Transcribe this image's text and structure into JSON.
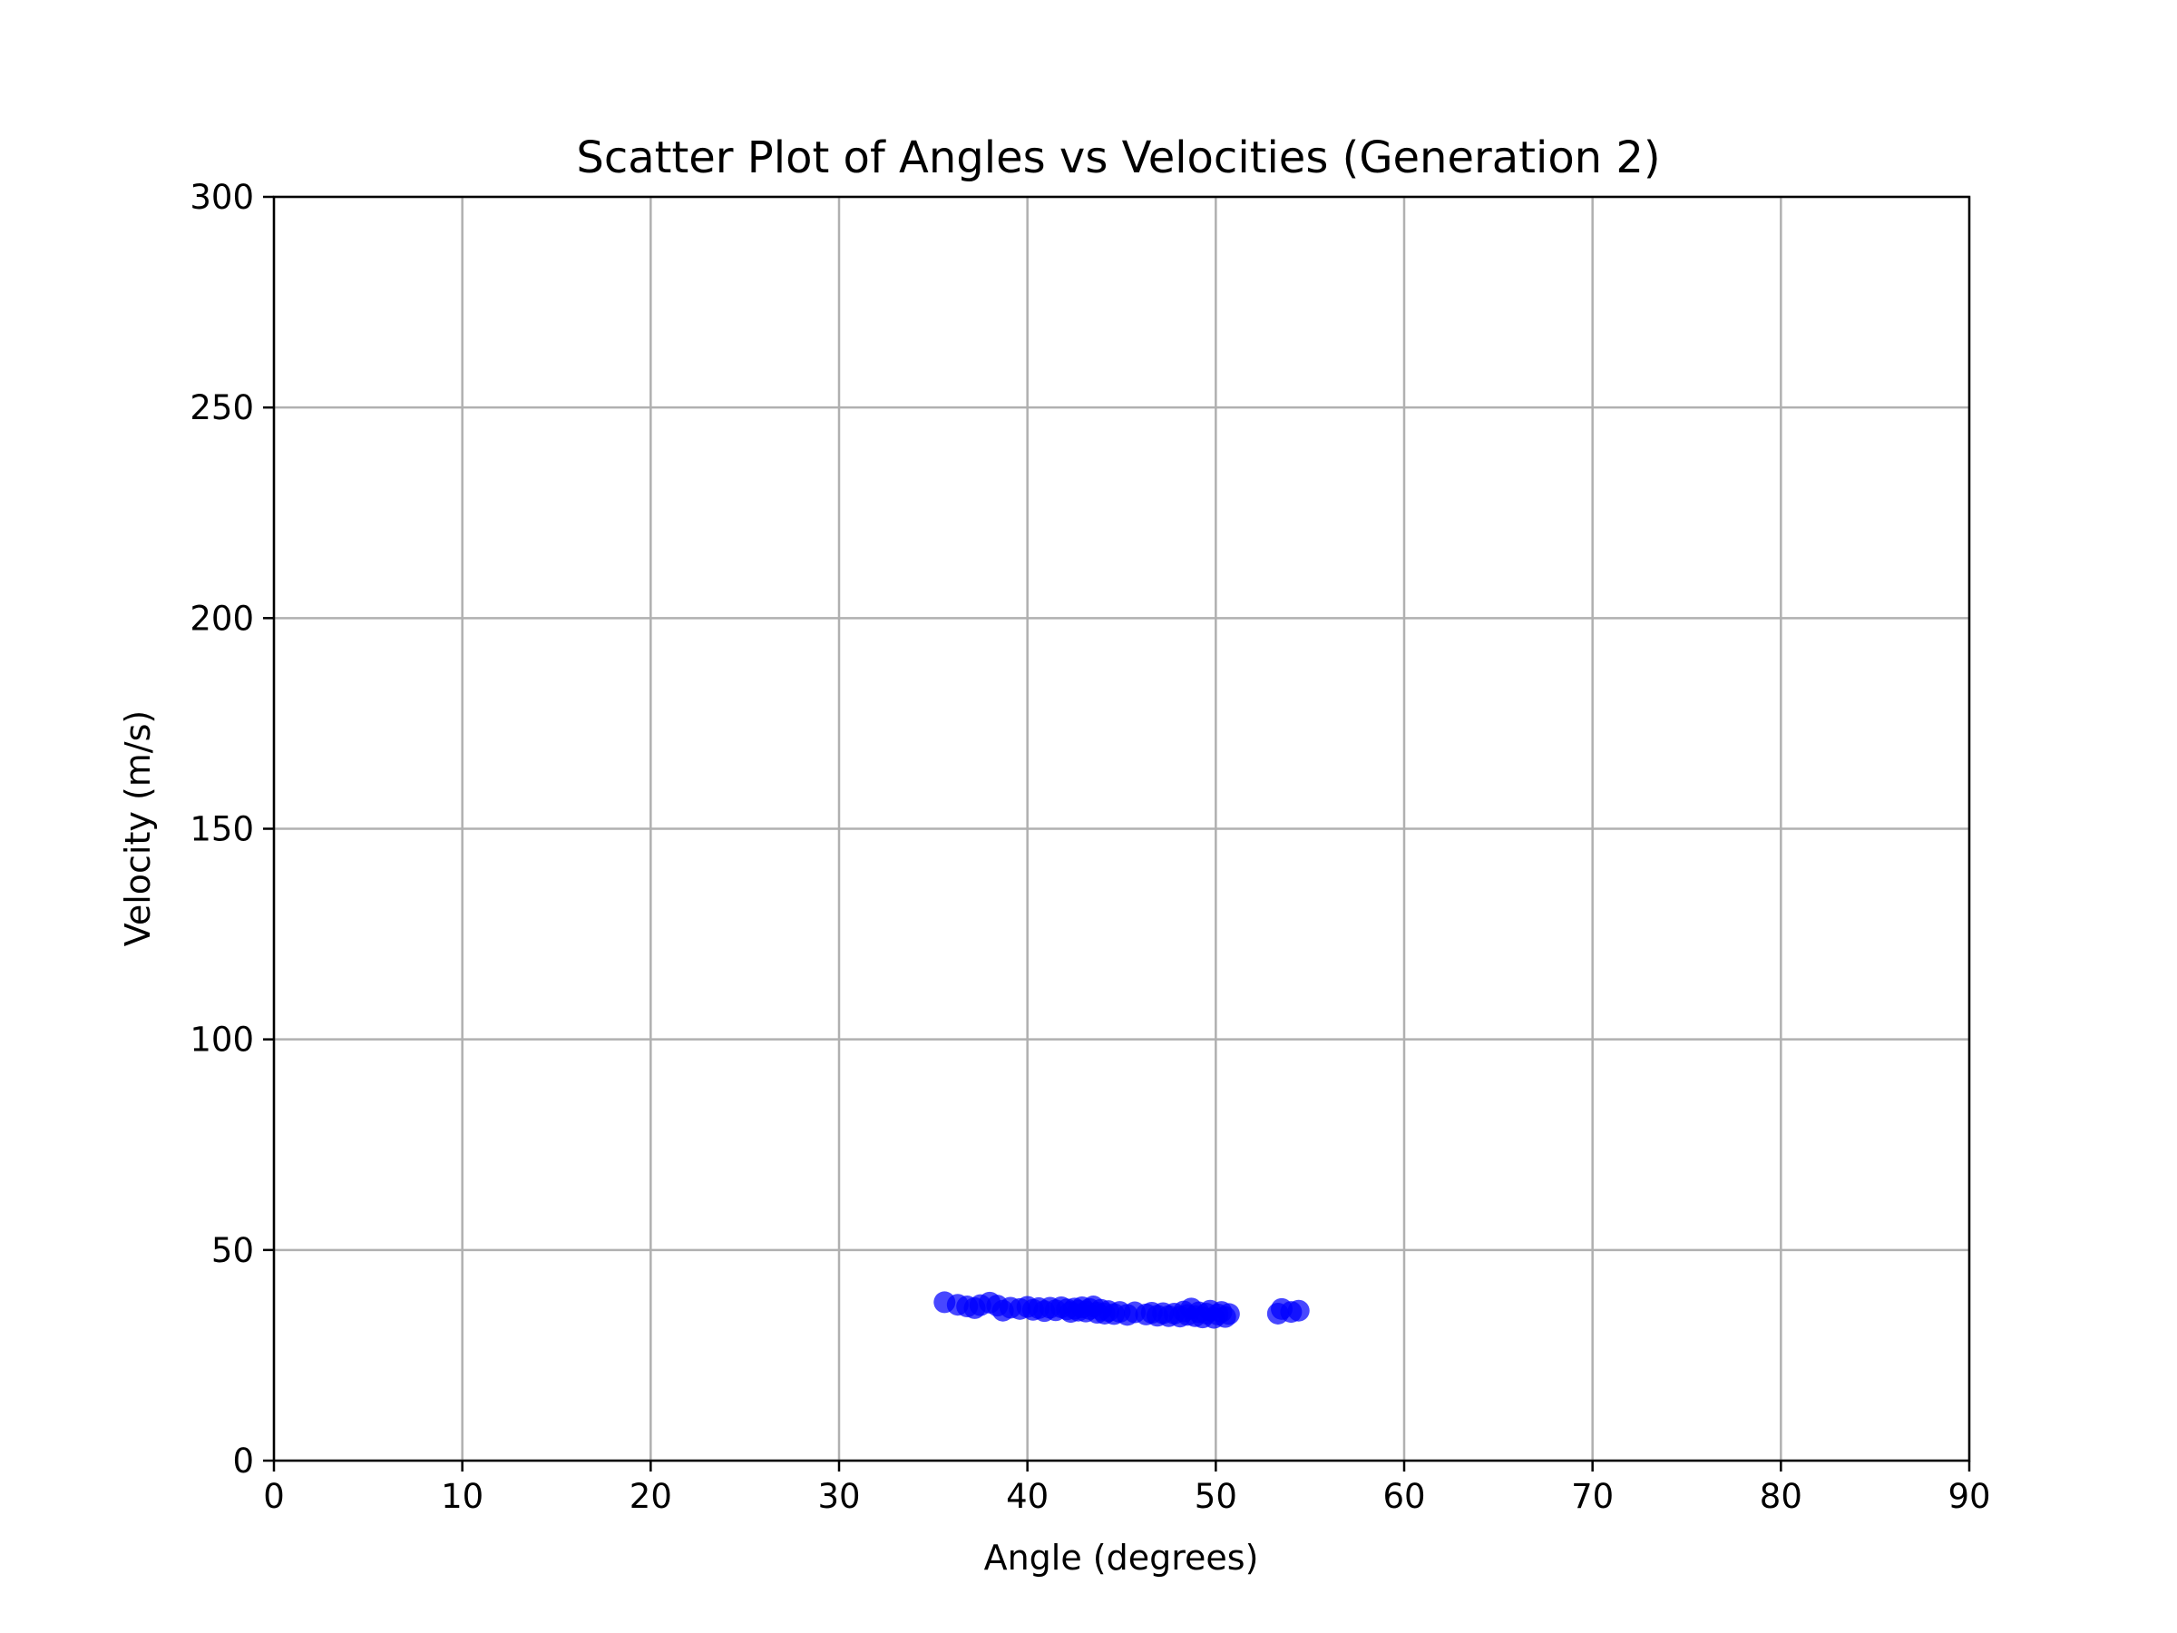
{
  "chart_data": {
    "type": "scatter",
    "title": "Scatter Plot of Angles vs Velocities (Generation 2)",
    "xlabel": "Angle (degrees)",
    "ylabel": "Velocity (m/s)",
    "xlim": [
      0,
      90
    ],
    "ylim": [
      0,
      300
    ],
    "xticks": [
      0,
      10,
      20,
      30,
      40,
      50,
      60,
      70,
      80,
      90
    ],
    "yticks": [
      0,
      50,
      100,
      150,
      200,
      250,
      300
    ],
    "xtick_labels": [
      "0",
      "10",
      "20",
      "30",
      "40",
      "50",
      "60",
      "70",
      "80",
      "90"
    ],
    "ytick_labels": [
      "0",
      "50",
      "100",
      "150",
      "200",
      "250",
      "300"
    ],
    "grid": true,
    "marker_color": "#0000ff",
    "grid_color": "#b0b0b0",
    "points": [
      [
        35.6,
        37.6
      ],
      [
        36.3,
        37.0
      ],
      [
        36.8,
        36.6
      ],
      [
        37.2,
        36.2
      ],
      [
        37.5,
        36.9
      ],
      [
        38.0,
        37.5
      ],
      [
        38.4,
        36.8
      ],
      [
        38.7,
        35.6
      ],
      [
        39.1,
        36.3
      ],
      [
        39.6,
        36.0
      ],
      [
        40.0,
        36.5
      ],
      [
        40.3,
        35.8
      ],
      [
        40.6,
        36.2
      ],
      [
        40.9,
        35.5
      ],
      [
        41.2,
        36.3
      ],
      [
        41.5,
        35.7
      ],
      [
        41.8,
        36.4
      ],
      [
        42.1,
        35.9
      ],
      [
        42.3,
        35.3
      ],
      [
        42.5,
        36.1
      ],
      [
        42.7,
        35.6
      ],
      [
        42.9,
        36.4
      ],
      [
        43.1,
        35.4
      ],
      [
        43.3,
        36.0
      ],
      [
        43.5,
        36.6
      ],
      [
        43.7,
        35.1
      ],
      [
        43.9,
        35.8
      ],
      [
        44.1,
        34.9
      ],
      [
        44.3,
        35.5
      ],
      [
        44.6,
        34.8
      ],
      [
        44.9,
        35.3
      ],
      [
        45.3,
        34.6
      ],
      [
        45.7,
        35.2
      ],
      [
        46.3,
        34.7
      ],
      [
        46.6,
        35.1
      ],
      [
        46.9,
        34.4
      ],
      [
        47.2,
        35.0
      ],
      [
        47.5,
        34.3
      ],
      [
        47.8,
        34.9
      ],
      [
        48.1,
        34.2
      ],
      [
        48.3,
        35.4
      ],
      [
        48.5,
        34.6
      ],
      [
        48.7,
        36.1
      ],
      [
        48.9,
        34.3
      ],
      [
        49.1,
        35.2
      ],
      [
        49.3,
        34.0
      ],
      [
        49.5,
        34.9
      ],
      [
        49.7,
        35.6
      ],
      [
        49.9,
        33.9
      ],
      [
        50.1,
        34.7
      ],
      [
        50.3,
        35.3
      ],
      [
        50.5,
        34.1
      ],
      [
        50.7,
        34.8
      ],
      [
        53.3,
        34.9
      ],
      [
        53.5,
        36.0
      ],
      [
        54.0,
        35.3
      ],
      [
        54.4,
        35.6
      ]
    ]
  }
}
